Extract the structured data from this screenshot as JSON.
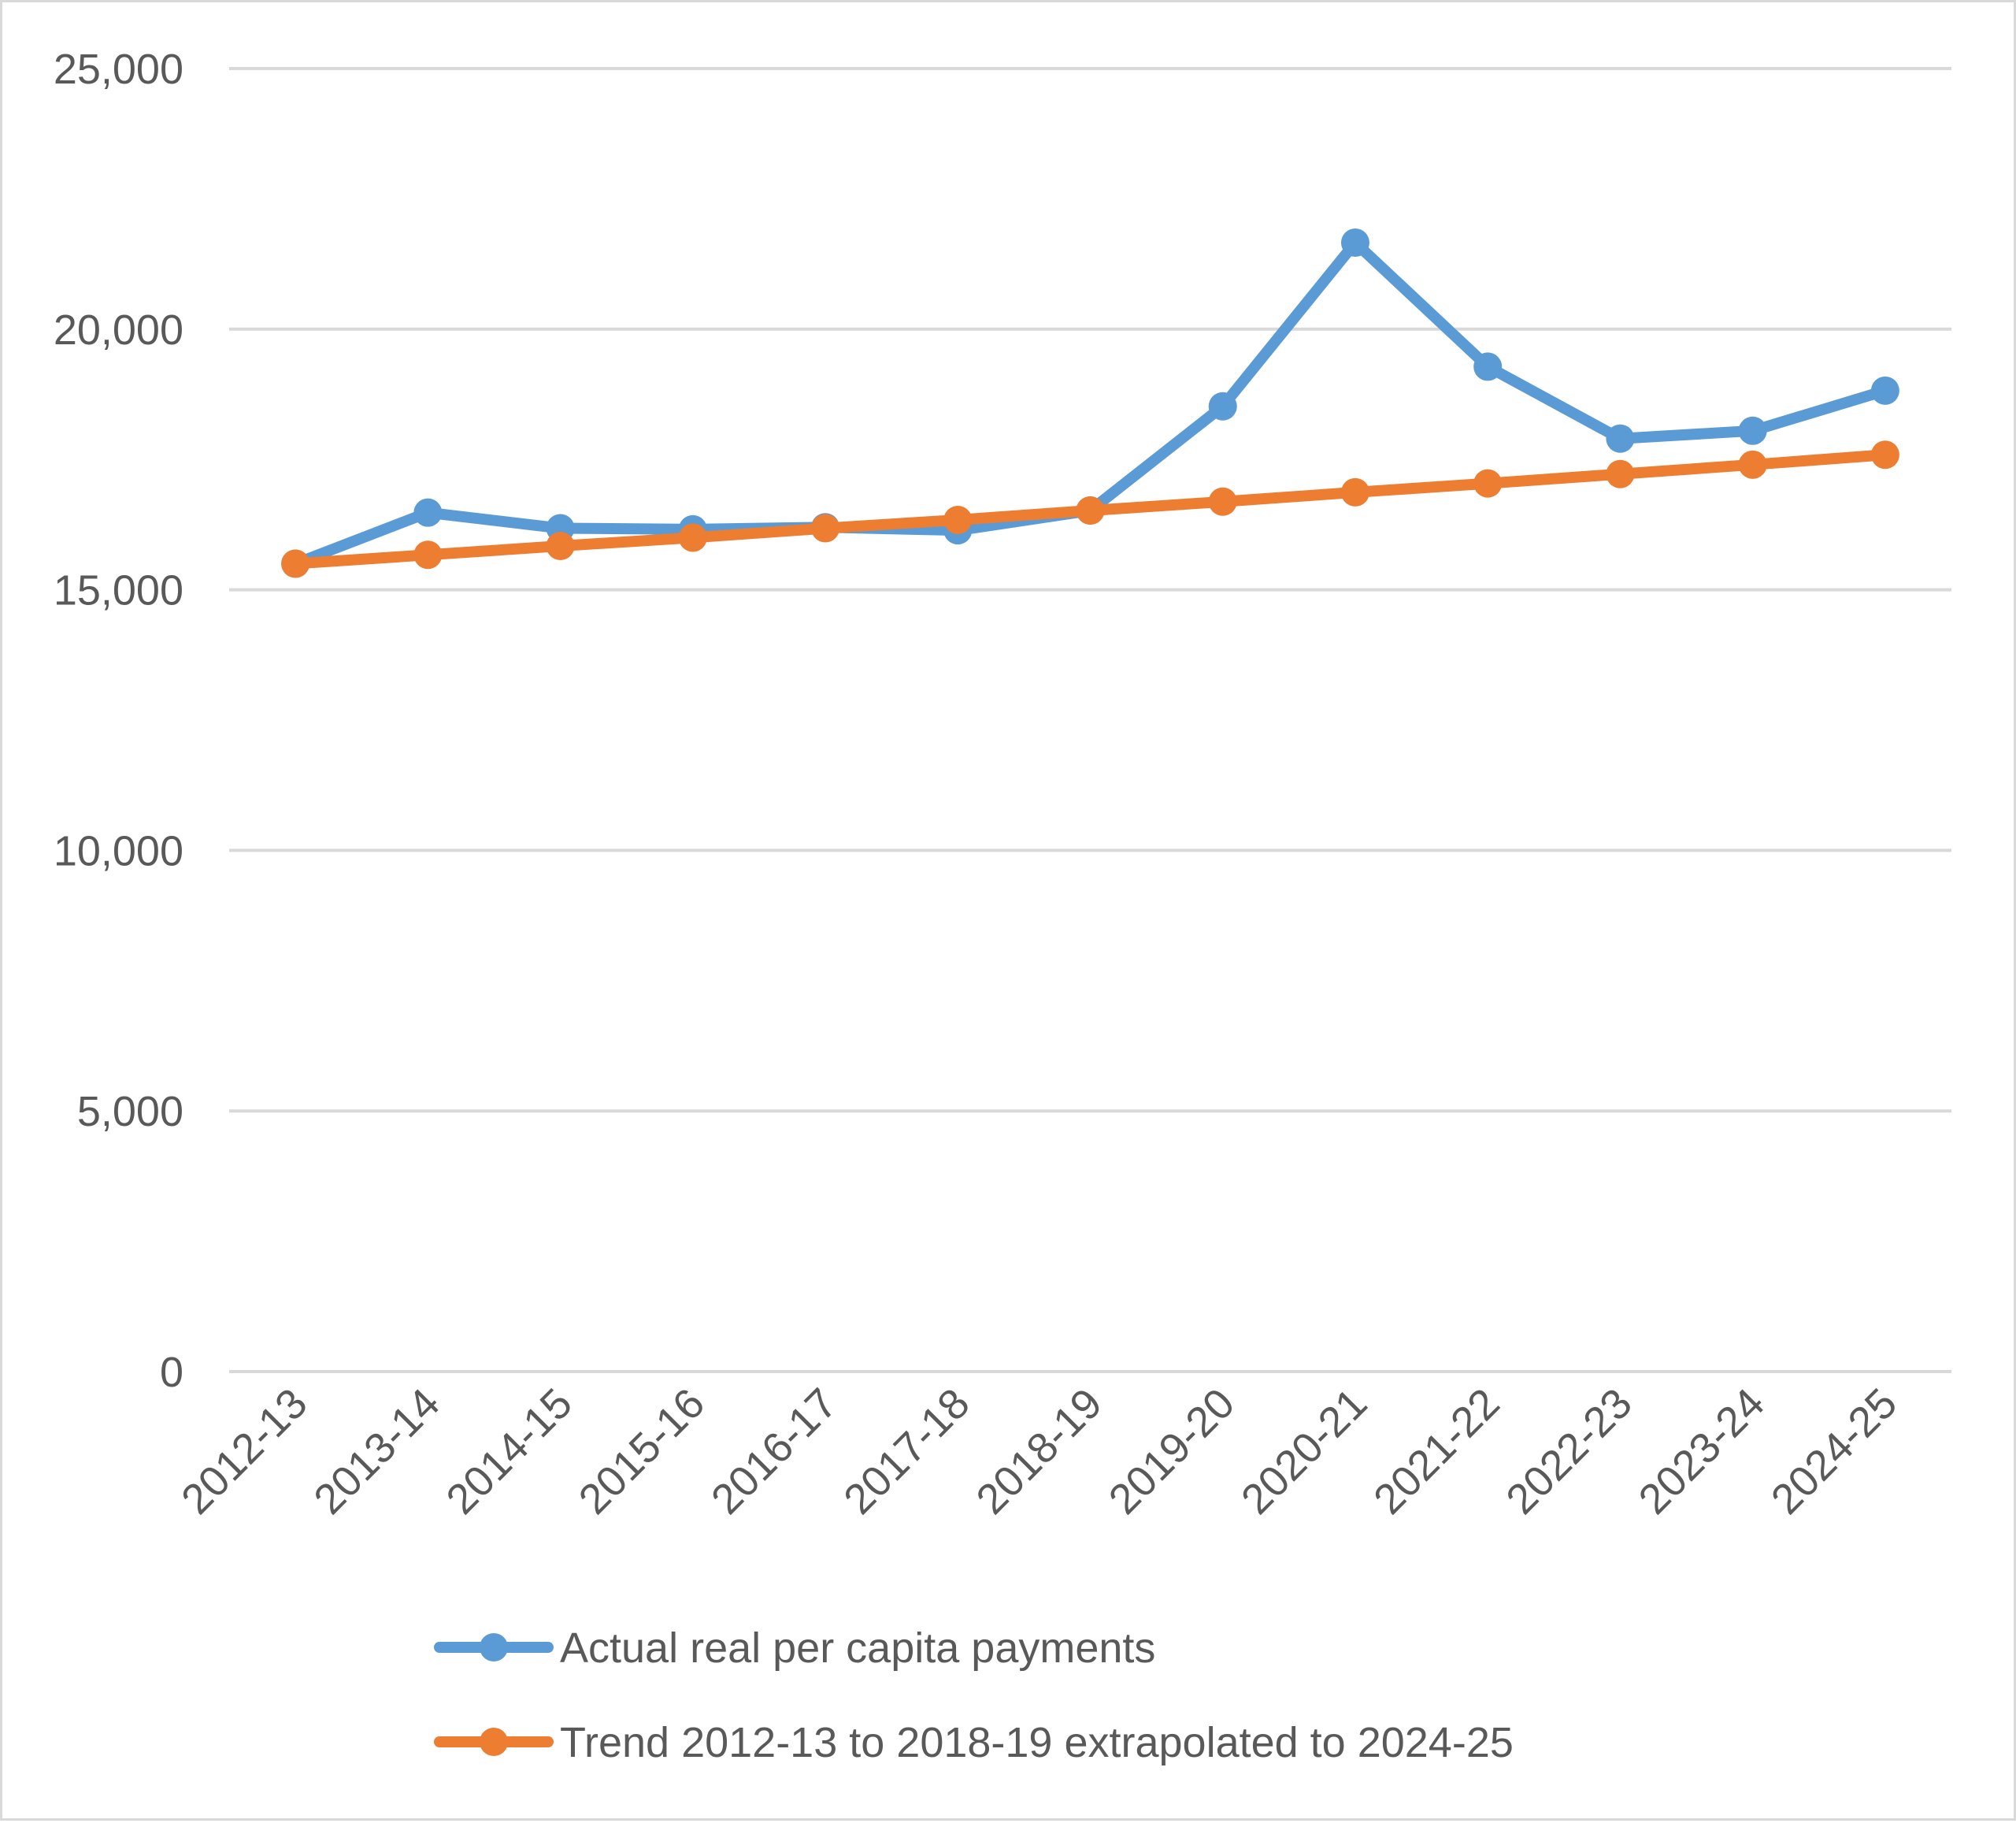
{
  "chart_data": {
    "type": "line",
    "title": "",
    "xlabel": "",
    "ylabel": "",
    "categories": [
      "2012-13",
      "2013-14",
      "2014-15",
      "2015-16",
      "2016-17",
      "2017-18",
      "2018-19",
      "2019-20",
      "2020-21",
      "2021-22",
      "2022-23",
      "2023-24",
      "2024-25"
    ],
    "yticks": [
      0,
      5000,
      10000,
      15000,
      20000,
      25000
    ],
    "ytick_labels": [
      "0",
      "5,000",
      "10,000",
      "15,000",
      "20,000",
      "25,000"
    ],
    "ylim": [
      0,
      25000
    ],
    "grid": true,
    "legend_position": "bottom",
    "series": [
      {
        "name": "Actual real per capita payments",
        "color": "#5b9bd5",
        "values": [
          15500,
          16480,
          16180,
          16160,
          16200,
          16140,
          16520,
          18520,
          21660,
          19280,
          17900,
          18050,
          18820
        ]
      },
      {
        "name": "Trend 2012-13 to 2018-19 extrapolated to 2024-25",
        "color": "#ed7d31",
        "values": [
          15500,
          15670,
          15840,
          16000,
          16180,
          16340,
          16520,
          16690,
          16870,
          17040,
          17220,
          17400,
          17590
        ]
      }
    ]
  }
}
